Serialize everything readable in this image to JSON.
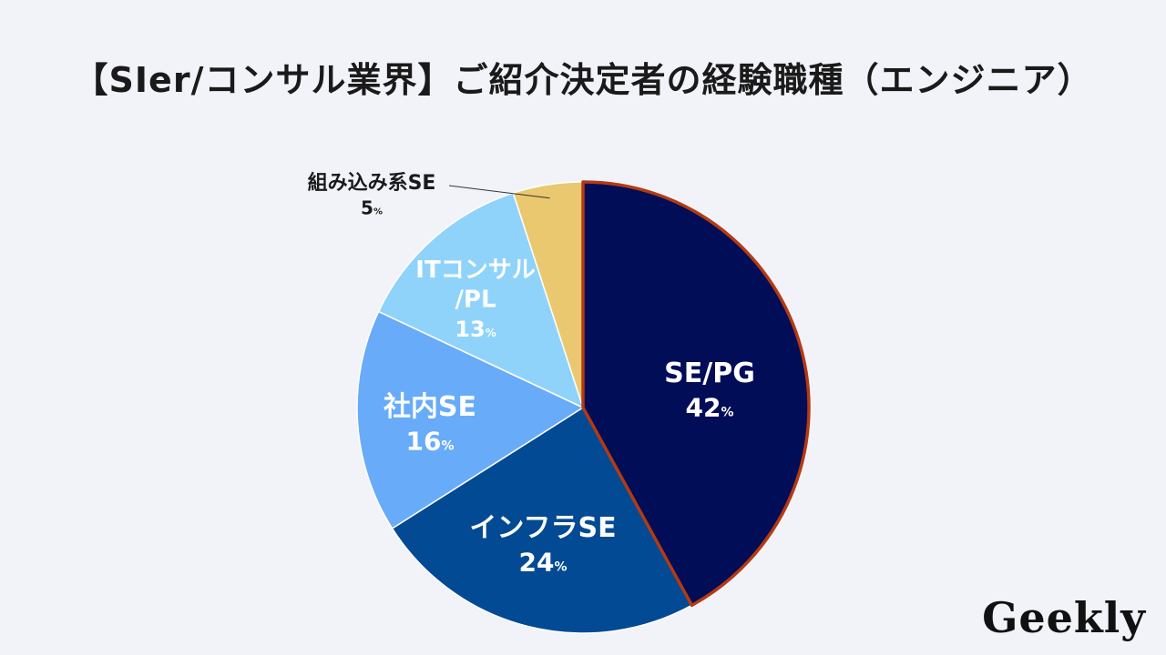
{
  "brand": {
    "logo_text": "Geekly"
  },
  "chart_data": {
    "type": "pie",
    "title": "【SIer/コンサル業界】ご紹介決定者の経験職種（エンジニア）",
    "value_suffix": "%",
    "start_angle_deg": 0,
    "direction": "clockwise",
    "slices": [
      {
        "label": "SE/PG",
        "value": 42,
        "color": "#020d57",
        "border": "#b33a12",
        "label_color": "#ffffff",
        "label_lines": [
          "SE/PG"
        ]
      },
      {
        "label": "インフラSE",
        "value": 24,
        "color": "#034a94",
        "border": "#ffffff",
        "label_color": "#ffffff",
        "label_lines": [
          "インフラSE"
        ]
      },
      {
        "label": "社内SE",
        "value": 16,
        "color": "#68abf8",
        "border": "#ffffff",
        "label_color": "#ffffff",
        "label_lines": [
          "社内SE"
        ]
      },
      {
        "label": "ITコンサル/PL",
        "value": 13,
        "color": "#8fd3fb",
        "border": "#ffffff",
        "label_color": "#ffffff",
        "label_lines": [
          "ITコンサル",
          "/PL"
        ]
      },
      {
        "label": "組み込み系SE",
        "value": 5,
        "color": "#e9c86f",
        "border": "#ffffff",
        "label_color": "#1a1a1a",
        "label_lines": [
          "組み込み系SE"
        ],
        "outside": true
      }
    ]
  }
}
